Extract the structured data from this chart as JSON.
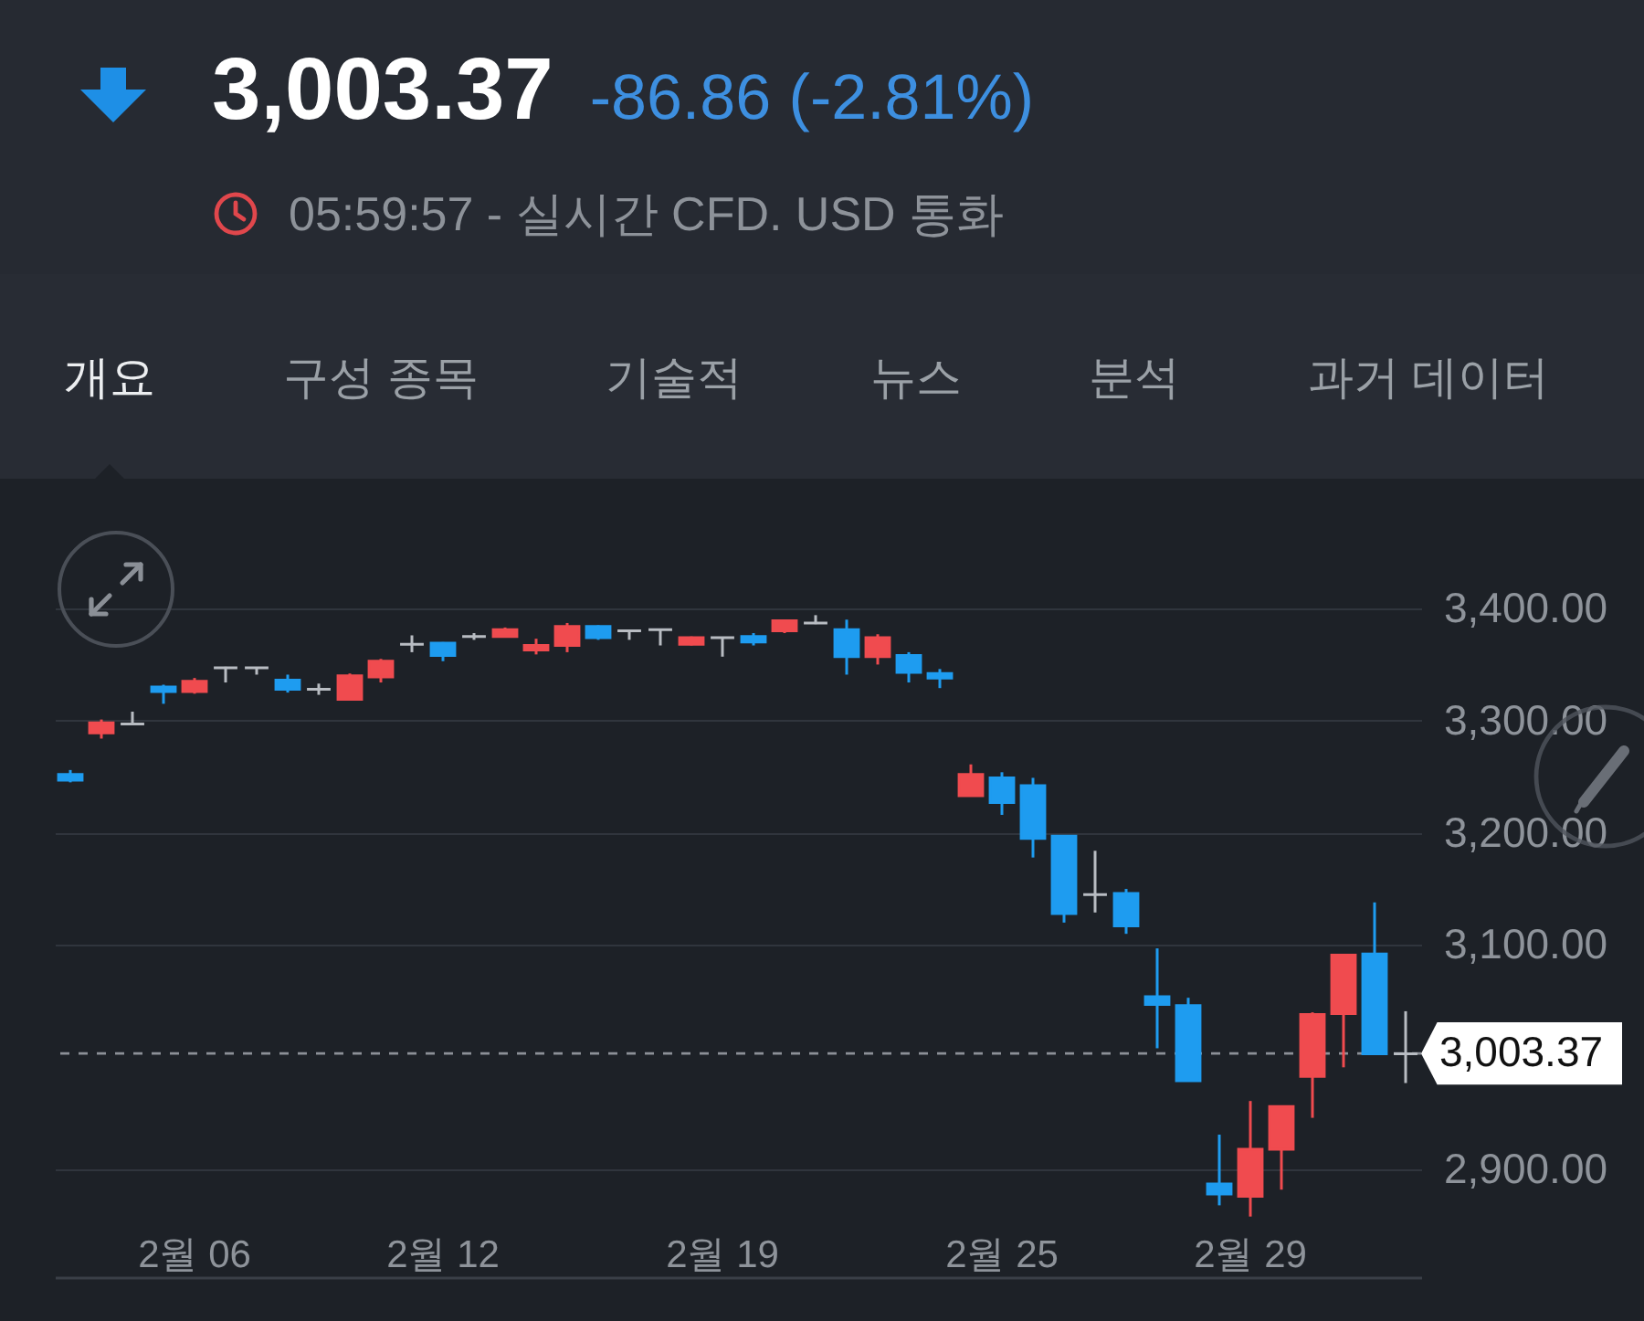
{
  "chart_data": {
    "type": "candlestick",
    "title": "3,003.37",
    "subtitle": "-86.86 (-2.81%)",
    "annotations": [
      "05:59:57 - 실시간 CFD. USD 통화",
      "개요",
      "구성 종목",
      "기술적",
      "뉴스",
      "분석",
      "과거 데이터"
    ],
    "categories": [
      null,
      null,
      null,
      null,
      "2월 06",
      null,
      null,
      null,
      null,
      null,
      null,
      null,
      "2월 12",
      null,
      null,
      null,
      null,
      null,
      null,
      null,
      null,
      "2월 19",
      null,
      null,
      null,
      null,
      null,
      null,
      null,
      null,
      "2월 25",
      null,
      null,
      null,
      null,
      null,
      null,
      null,
      "2월 29",
      null,
      null,
      null,
      null,
      null
    ],
    "ohlc": [
      [
        3252,
        3256,
        3245,
        3247
      ],
      [
        3289,
        3301,
        3284,
        3298
      ],
      [
        3297,
        3308,
        3296,
        3297
      ],
      [
        3330,
        3332,
        3315,
        3326
      ],
      [
        3326,
        3338,
        3324,
        3335
      ],
      [
        3347,
        3348,
        3334,
        3347
      ],
      [
        3347,
        3347,
        3341,
        3347
      ],
      [
        3336,
        3341,
        3325,
        3328
      ],
      [
        3328,
        3333,
        3323,
        3328
      ],
      [
        3319,
        3342,
        3318,
        3340
      ],
      [
        3339,
        3355,
        3334,
        3353
      ],
      [
        3368,
        3376,
        3361,
        3368
      ],
      [
        3369,
        3370,
        3353,
        3358
      ],
      [
        3375,
        3378,
        3372,
        3375
      ],
      [
        3375,
        3383,
        3375,
        3381
      ],
      [
        3363,
        3373,
        3359,
        3367
      ],
      [
        3367,
        3387,
        3361,
        3384
      ],
      [
        3384,
        3385,
        3372,
        3374
      ],
      [
        3380,
        3381,
        3372,
        3380
      ],
      [
        3381,
        3381,
        3367,
        3381
      ],
      [
        3368,
        3375,
        3367,
        3374
      ],
      [
        3374,
        3374,
        3357,
        3374
      ],
      [
        3375,
        3378,
        3367,
        3370
      ],
      [
        3380,
        3390,
        3378,
        3389
      ],
      [
        3387,
        3394,
        3386,
        3387
      ],
      [
        3381,
        3390,
        3341,
        3357
      ],
      [
        3357,
        3377,
        3350,
        3374
      ],
      [
        3358,
        3361,
        3334,
        3343
      ],
      [
        3342,
        3346,
        3329,
        3338
      ],
      [
        3233,
        3261,
        3233,
        3252
      ],
      [
        3249,
        3254,
        3216,
        3227
      ],
      [
        3242,
        3249,
        3178,
        3195
      ],
      [
        3197,
        3198,
        3120,
        3128
      ],
      [
        3145,
        3184,
        3129,
        3145
      ],
      [
        3146,
        3150,
        3110,
        3117
      ],
      [
        3054,
        3097,
        3008,
        3047
      ],
      [
        3046,
        3053,
        2979,
        2979
      ],
      [
        2887,
        2931,
        2868,
        2878
      ],
      [
        2876,
        2961,
        2858,
        2918
      ],
      [
        2918,
        2956,
        2882,
        2956
      ],
      [
        2983,
        3040,
        2946,
        3038
      ],
      [
        3039,
        3091,
        2991,
        3091
      ],
      [
        3092,
        3138,
        3002,
        3003
      ],
      [
        3003,
        3041,
        2977,
        3003
      ]
    ],
    "colors": [
      "#1e9cf0",
      "#f04b4f",
      "#b8bcc2",
      "#1e9cf0",
      "#f04b4f",
      "#b8bcc2",
      "#b8bcc2",
      "#1e9cf0",
      "#b8bcc2",
      "#f04b4f",
      "#f04b4f",
      "#b8bcc2",
      "#1e9cf0",
      "#b8bcc2",
      "#f04b4f",
      "#f04b4f",
      "#f04b4f",
      "#1e9cf0",
      "#b8bcc2",
      "#b8bcc2",
      "#f04b4f",
      "#b8bcc2",
      "#1e9cf0",
      "#f04b4f",
      "#b8bcc2",
      "#1e9cf0",
      "#f04b4f",
      "#1e9cf0",
      "#1e9cf0",
      "#f04b4f",
      "#1e9cf0",
      "#1e9cf0",
      "#1e9cf0",
      "#b8bcc2",
      "#1e9cf0",
      "#1e9cf0",
      "#1e9cf0",
      "#1e9cf0",
      "#f04b4f",
      "#f04b4f",
      "#f04b4f",
      "#f04b4f",
      "#1e9cf0",
      "#b8bcc2"
    ],
    "ylim": [
      2804,
      3400
    ],
    "yticks": [
      {
        "value": 2900,
        "label": "2,900.00"
      },
      {
        "value": 3100,
        "label": "3,100.00"
      },
      {
        "value": 3200,
        "label": "3,200.00"
      },
      {
        "value": 3300,
        "label": "3,300.00"
      },
      {
        "value": 3400,
        "label": "3,400.00"
      }
    ],
    "ref_lines": [
      {
        "axis": "y",
        "value": 3003.37,
        "label": "3,003.37",
        "color": "#8c9097",
        "line_style": "dashed"
      }
    ],
    "grid": "y"
  }
}
